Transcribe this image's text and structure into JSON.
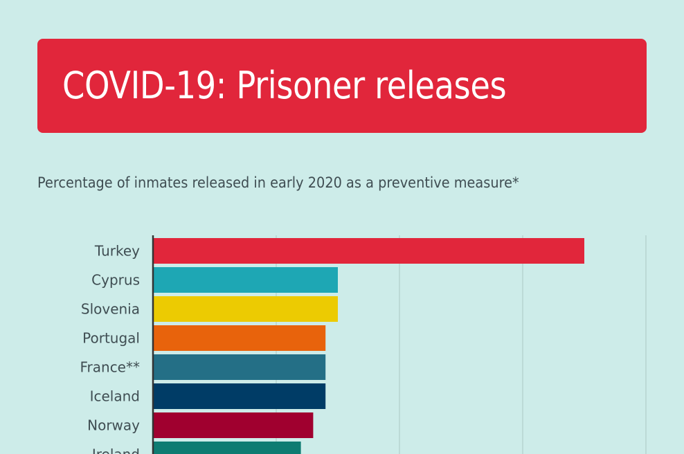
{
  "title": "COVID-19: Prisoner releases",
  "subtitle": "Percentage of inmates released in early 2020 as a preventive measure*",
  "colors": {
    "background": "#cdece9",
    "banner": "#e1263b",
    "gridline": "#b6d3d0",
    "axis": "#333333",
    "label": "#3f4d52"
  },
  "chart_data": {
    "type": "bar",
    "orientation": "horizontal",
    "title": "COVID-19: Prisoner releases",
    "subtitle": "Percentage of inmates released in early 2020 as a preventive measure*",
    "categories": [
      "Turkey",
      "Cyprus",
      "Slovenia",
      "Portugal",
      "France**",
      "Iceland",
      "Norway",
      "Ireland"
    ],
    "values": [
      35,
      15,
      15,
      14,
      14,
      14,
      13,
      12
    ],
    "colors": [
      "#e1263b",
      "#1ea7b4",
      "#eccb02",
      "#e8630c",
      "#246f86",
      "#003c66",
      "#a0002f",
      "#0e7c72"
    ],
    "xlim": [
      0,
      40
    ],
    "grid": true
  }
}
